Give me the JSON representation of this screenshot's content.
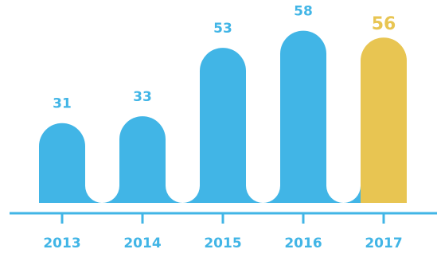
{
  "colors": {
    "bar": "#41B5E6",
    "highlight": "#E8C552",
    "axis": "#41B5E6",
    "category_text": "#41B5E6",
    "value_text": "#41B5E6"
  },
  "chart_data": {
    "type": "bar",
    "categories": [
      "2013",
      "2014",
      "2015",
      "2016",
      "2017"
    ],
    "values": [
      31,
      33,
      53,
      58,
      56
    ],
    "highlight_index": 4,
    "title": "",
    "xlabel": "",
    "ylabel": "",
    "grid": false,
    "legend": "none"
  }
}
